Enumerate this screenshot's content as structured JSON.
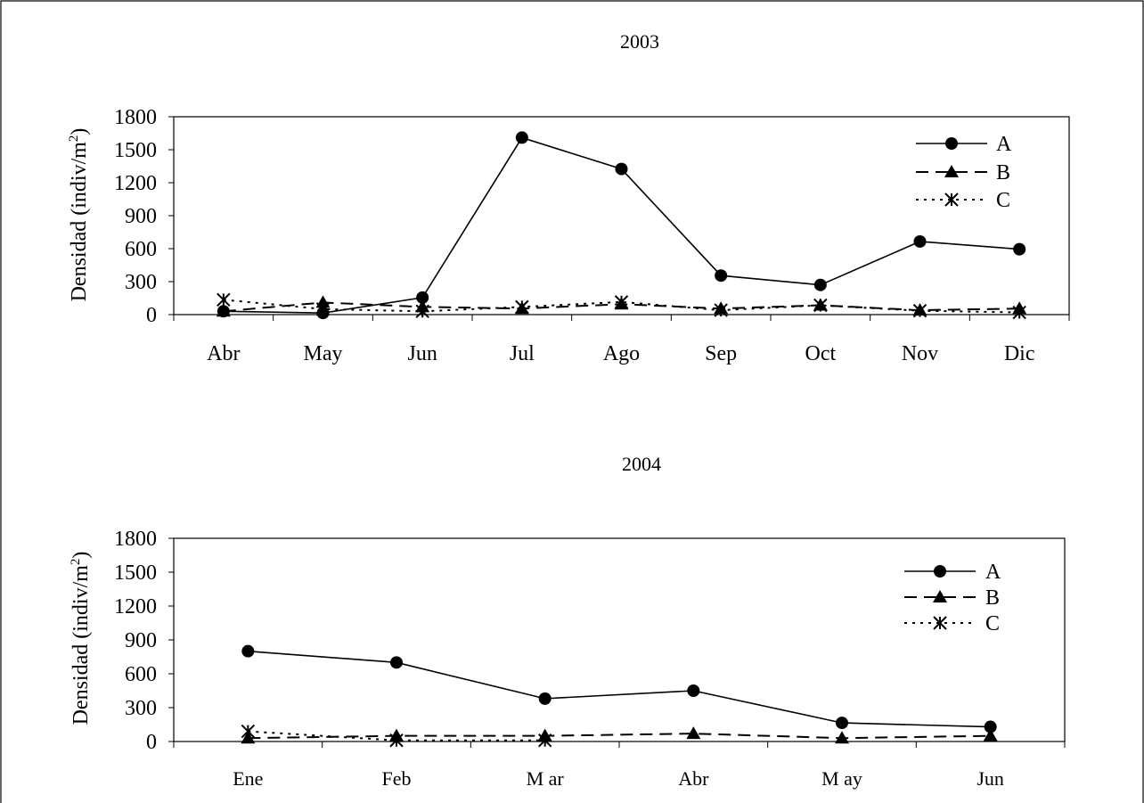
{
  "chart_data": [
    {
      "type": "line",
      "title": "2003",
      "ylabel": "Densidad (indiv/m",
      "ylabel_sup": "2",
      "ylabel_close": ")",
      "ylim": [
        0,
        1800
      ],
      "yticks": [
        0,
        300,
        600,
        900,
        1200,
        1500,
        1800
      ],
      "categories": [
        "Abr",
        "May",
        "Jun",
        "Jul",
        "Ago",
        "Sep",
        "Oct",
        "Nov",
        "Dic"
      ],
      "legend_position": "top-right",
      "series": [
        {
          "name": "A",
          "marker": "circle",
          "dash": "solid",
          "values": [
            30,
            15,
            155,
            1610,
            1325,
            355,
            270,
            665,
            595
          ]
        },
        {
          "name": "B",
          "marker": "triangle",
          "dash": "dashed",
          "values": [
            30,
            110,
            70,
            55,
            95,
            55,
            85,
            40,
            55
          ]
        },
        {
          "name": "C",
          "marker": "asterisk",
          "dash": "dotted",
          "values": [
            135,
            50,
            30,
            70,
            115,
            40,
            85,
            35,
            20
          ]
        }
      ]
    },
    {
      "type": "line",
      "title": "2004",
      "ylabel": "Densidad (indiv/m",
      "ylabel_sup": "2",
      "ylabel_close": ")",
      "ylim": [
        0,
        1800
      ],
      "yticks": [
        0,
        300,
        600,
        900,
        1200,
        1500,
        1800
      ],
      "categories": [
        "Ene",
        "Feb",
        "M ar",
        "Abr",
        "M ay",
        "Jun"
      ],
      "legend_position": "top-right",
      "series": [
        {
          "name": "A",
          "marker": "circle",
          "dash": "solid",
          "values": [
            800,
            700,
            380,
            450,
            165,
            130
          ]
        },
        {
          "name": "B",
          "marker": "triangle",
          "dash": "dashed",
          "values": [
            30,
            50,
            50,
            70,
            30,
            50
          ]
        },
        {
          "name": "C",
          "marker": "asterisk",
          "dash": "dotted",
          "values": [
            90,
            10,
            10,
            null,
            null,
            null
          ]
        }
      ]
    }
  ]
}
